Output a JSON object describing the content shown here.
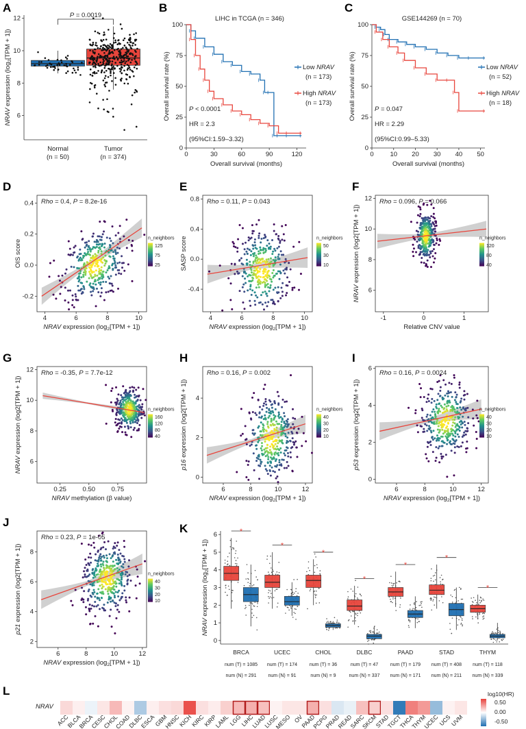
{
  "colors": {
    "red": "#e8453c",
    "blue": "#1f6fb2",
    "yellow": "#f5e51f",
    "purple": "#46185f",
    "band": "#c8c8c8",
    "fit": "#e8453c"
  },
  "panel_labels": [
    "A",
    "B",
    "C",
    "D",
    "E",
    "F",
    "G",
    "H",
    "I",
    "J",
    "K",
    "L"
  ],
  "chart_data": [
    {
      "id": "A",
      "type": "box",
      "title": "",
      "xlabel": "",
      "ylabel": "NRAV expression (log2[TPM + 1])",
      "ylabel_parts": {
        "gene": "NRAV",
        "rest": " expression (log",
        "sub": "2",
        "end": "[TPM + 1])"
      },
      "annotation": "P = 0.0019",
      "categories": [
        {
          "label": "Normal",
          "n": "(n = 50)",
          "color": "#1f6fb2",
          "q1": 9.05,
          "median": 9.2,
          "q3": 9.4,
          "wlo": 8.6,
          "whi": 10.0
        },
        {
          "label": "Tumor",
          "n": "(n = 374)",
          "color": "#e8453c",
          "q1": 9.1,
          "median": 9.55,
          "q3": 10.1,
          "wlo": 7.6,
          "whi": 11.5
        }
      ],
      "ylim": [
        4.5,
        12.2
      ],
      "yticks": [
        "6",
        "8",
        "10",
        "12"
      ],
      "ytick_vals": [
        6,
        8,
        10,
        12
      ]
    },
    {
      "id": "B",
      "type": "line",
      "title": "LIHC in TCGA (n = 346)",
      "xlabel": "Overall survival (months)",
      "ylabel": "Overall survival rate (%)",
      "xlim": [
        0,
        130
      ],
      "ylim": [
        0,
        100
      ],
      "xticks": [
        "0",
        "30",
        "60",
        "90",
        "120"
      ],
      "xtick_vals": [
        0,
        30,
        60,
        90,
        120
      ],
      "yticks": [
        "0",
        "25",
        "50",
        "75",
        "100"
      ],
      "ytick_vals": [
        0,
        25,
        50,
        75,
        100
      ],
      "series": [
        {
          "name": "Low NRAV",
          "label_main": "Low ",
          "label_gene": "NRAV",
          "n": "(n = 173)",
          "color": "#1f6fb2",
          "x": [
            0,
            5,
            10,
            20,
            30,
            40,
            50,
            60,
            70,
            80,
            85,
            90,
            95,
            100,
            110,
            125
          ],
          "y": [
            100,
            95,
            89,
            82,
            76,
            70,
            67,
            62,
            60,
            55,
            45,
            45,
            10,
            10,
            10,
            10
          ]
        },
        {
          "name": "High NRAV",
          "label_main": "High ",
          "label_gene": "NRAV",
          "n": "(n = 173)",
          "color": "#e8453c",
          "x": [
            0,
            5,
            10,
            15,
            20,
            25,
            30,
            40,
            50,
            60,
            70,
            80,
            90,
            100,
            110,
            125
          ],
          "y": [
            100,
            88,
            75,
            64,
            55,
            46,
            40,
            35,
            30,
            27,
            23,
            20,
            18,
            12,
            12,
            12
          ]
        }
      ],
      "stats": [
        "P < 0.0001",
        "HR = 2.3",
        "(95%CI:1.59–3.32)"
      ]
    },
    {
      "id": "C",
      "type": "line",
      "title": "GSE144269 (n = 70)",
      "xlabel": "Overall survival (months)",
      "ylabel": "Overall survival rate (%)",
      "xlim": [
        0,
        52
      ],
      "ylim": [
        0,
        100
      ],
      "xticks": [
        "0",
        "10",
        "20",
        "30",
        "40",
        "50"
      ],
      "xtick_vals": [
        0,
        10,
        20,
        30,
        40,
        50
      ],
      "yticks": [
        "0",
        "25",
        "50",
        "75",
        "100"
      ],
      "ytick_vals": [
        0,
        25,
        50,
        75,
        100
      ],
      "series": [
        {
          "name": "Low NRAV",
          "label_main": "Low ",
          "label_gene": "NRAV",
          "n": "(n = 52)",
          "color": "#1f6fb2",
          "x": [
            0,
            2,
            4,
            6,
            8,
            12,
            16,
            20,
            25,
            30,
            35,
            40,
            45,
            52
          ],
          "y": [
            100,
            98,
            96,
            92,
            88,
            86,
            84,
            82,
            80,
            77,
            75,
            73,
            73,
            73
          ]
        },
        {
          "name": "High NRAV",
          "label_main": "High ",
          "label_gene": "NRAV",
          "n": "(n = 18)",
          "color": "#e8453c",
          "x": [
            0,
            2,
            5,
            8,
            12,
            15,
            20,
            25,
            30,
            35,
            38,
            40,
            52
          ],
          "y": [
            100,
            94,
            88,
            82,
            77,
            71,
            65,
            60,
            55,
            55,
            45,
            30,
            30
          ]
        }
      ],
      "stats": [
        "P = 0.047",
        "HR = 2.29",
        "(95%CI:0.99–5.33)"
      ]
    },
    {
      "id": "D",
      "type": "scatter",
      "stat": "Rho = 0.4, P = 8.2e-16",
      "stat_rho": "Rho",
      "stat_rest": " = 0.4, ",
      "stat_p": "P",
      "stat_val": " = 8.2e-16",
      "xlabel": "NRAV expression (log2[TPM + 1])",
      "xlab_gene": "NRAV",
      "xlab_rest": " expression (log",
      "xlab_end": "[TPM + 1])",
      "ylabel": "OIS score",
      "ylab_gene": "",
      "ylab_rest": "OIS score",
      "xlim": [
        3.5,
        10.5
      ],
      "ylim": [
        -0.3,
        0.45
      ],
      "xticks": [
        "4",
        "6",
        "8",
        "10"
      ],
      "xtick_vals": [
        4,
        6,
        8,
        10
      ],
      "yticks": [
        "-0.2",
        "0.0",
        "0.2",
        "0.4"
      ],
      "ytick_vals": [
        -0.2,
        0,
        0.2,
        0.4
      ],
      "fit": [
        [
          3.8,
          -0.2
        ],
        [
          10.2,
          0.24
        ]
      ],
      "band": 0.04,
      "cx": 7.2,
      "cy": 0.0,
      "sx": 1.0,
      "sy": 0.11,
      "n": 380,
      "legend_title": "n_neighbors",
      "legend_ticks": [
        "125",
        "75",
        "25"
      ]
    },
    {
      "id": "E",
      "type": "scatter",
      "stat": "Rho = 0.11, P = 0.043",
      "stat_rho": "Rho",
      "stat_rest": " = 0.11, ",
      "stat_p": "P",
      "stat_val": " = 0.043",
      "xlabel": "NRAV expression (log2[TPM + 1])",
      "xlab_gene": "NRAV",
      "xlab_rest": " expression (log",
      "xlab_end": "[TPM + 1])",
      "ylabel": "SASP score",
      "ylab_gene": "",
      "ylab_rest": "SASP score",
      "xlim": [
        3.5,
        10.5
      ],
      "ylim": [
        -0.7,
        0.85
      ],
      "xticks": [
        "4",
        "6",
        "8",
        "10"
      ],
      "xtick_vals": [
        4,
        6,
        8,
        10
      ],
      "yticks": [
        "-0.4",
        "0.0",
        "0.4",
        "0.8"
      ],
      "ytick_vals": [
        -0.4,
        0,
        0.4,
        0.8
      ],
      "fit": [
        [
          3.8,
          -0.2
        ],
        [
          10.2,
          0.02
        ]
      ],
      "band": 0.09,
      "cx": 7.3,
      "cy": -0.15,
      "sx": 0.9,
      "sy": 0.28,
      "n": 380,
      "legend_title": "n_neighbors",
      "legend_ticks": [
        "50",
        "30",
        "10"
      ]
    },
    {
      "id": "F",
      "type": "scatter",
      "stat": "Rho = 0.096, P = 0.066",
      "stat_rho": "Rho",
      "stat_rest": " = 0.096, ",
      "stat_p": "P",
      "stat_val": " = 0.066",
      "xlabel": "Relative CNV value",
      "xlab_gene": "",
      "xlab_rest": "Relative CNV value",
      "xlab_end": "",
      "ylabel": "NRAV expression (log2[TPM + 1])",
      "ylab_gene": "NRAV",
      "ylab_rest": " expression (log2[TPM + 1])",
      "xlim": [
        -1.2,
        1.6
      ],
      "ylim": [
        4.6,
        12.2
      ],
      "xticks": [
        "-1",
        "0",
        "1"
      ],
      "xtick_vals": [
        -1,
        0,
        1
      ],
      "yticks": [
        "6",
        "8",
        "10",
        "12"
      ],
      "ytick_vals": [
        6,
        8,
        10,
        12
      ],
      "fit": [
        [
          -1.15,
          9.2
        ],
        [
          1.55,
          10.0
        ]
      ],
      "band": 0.35,
      "cx": 0.05,
      "cy": 9.5,
      "sx": 0.12,
      "sy": 0.8,
      "n": 330,
      "legend_title": "n_neighbors",
      "legend_ticks": [
        "120",
        "80",
        "40"
      ]
    },
    {
      "id": "G",
      "type": "scatter",
      "stat": "Rho = -0.35, P = 7.7e-12",
      "stat_rho": "Rho",
      "stat_rest": " = -0.35, ",
      "stat_p": "P",
      "stat_val": " = 7.7e-12",
      "xlabel": "NRAV methylation (β value)",
      "xlab_gene": "NRAV",
      "xlab_rest": " methylation (β value)",
      "xlab_end": "",
      "ylabel": "NRAV expression (log2[TPM + 1])",
      "ylab_gene": "NRAV",
      "ylab_rest": " expression (log2[TPM + 1])",
      "xlim": [
        0.05,
        1.0
      ],
      "ylim": [
        4.6,
        12.2
      ],
      "xticks": [
        "0.25",
        "0.50",
        "0.75"
      ],
      "xtick_vals": [
        0.25,
        0.5,
        0.75
      ],
      "yticks": [
        "6",
        "8",
        "10",
        "12"
      ],
      "ytick_vals": [
        6,
        8,
        10,
        12
      ],
      "fit": [
        [
          0.1,
          10.3
        ],
        [
          0.98,
          9.2
        ]
      ],
      "band": 0.15,
      "cx": 0.85,
      "cy": 9.4,
      "sx": 0.06,
      "sy": 0.7,
      "n": 360,
      "legend_title": "n_neighbors",
      "legend_ticks": [
        "160",
        "120",
        "80",
        "40"
      ]
    },
    {
      "id": "H",
      "type": "scatter",
      "stat": "Rho = 0.16, P = 0.002",
      "stat_rho": "Rho",
      "stat_rest": " = 0.16, ",
      "stat_p": "P",
      "stat_val": " = 0.002",
      "xlabel": "NRAV expression (log2[TPM + 1])",
      "xlab_gene": "NRAV",
      "xlab_rest": " expression (log",
      "xlab_end": "[TPM + 1])",
      "ylabel": "p16 expression (log2[TPM + 1])",
      "ylab_gene": "p16",
      "ylab_rest": " expression (log2[TPM + 1])",
      "xlim": [
        4.5,
        12.5
      ],
      "ylim": [
        -0.3,
        5.6
      ],
      "xticks": [
        "6",
        "8",
        "10",
        "12"
      ],
      "xtick_vals": [
        6,
        8,
        10,
        12
      ],
      "yticks": [
        "0",
        "2",
        "4"
      ],
      "ytick_vals": [
        0,
        2,
        4
      ],
      "fit": [
        [
          4.8,
          1.1
        ],
        [
          12,
          2.7
        ]
      ],
      "band": 0.3,
      "cx": 9.5,
      "cy": 2.0,
      "sx": 0.9,
      "sy": 1.1,
      "n": 380,
      "legend_title": "n_neighbors",
      "legend_ticks": [
        "40",
        "30",
        "20",
        "10"
      ]
    },
    {
      "id": "I",
      "type": "scatter",
      "stat": "Rho = 0.16, P = 0.0024",
      "stat_rho": "Rho",
      "stat_rest": " = 0.16, ",
      "stat_p": "P",
      "stat_val": " = 0.0024",
      "xlabel": "NRAV expression (log2[TPM + 1])",
      "xlab_gene": "NRAV",
      "xlab_rest": " expression (log",
      "xlab_end": "[TPM + 1])",
      "ylabel": "p53 expression (log2[TPM + 1])",
      "ylab_gene": "p53",
      "ylab_rest": " expression (log2[TPM + 1])",
      "xlim": [
        4.5,
        12.5
      ],
      "ylim": [
        -0.2,
        6.1
      ],
      "xticks": [
        "6",
        "8",
        "10",
        "12"
      ],
      "xtick_vals": [
        6,
        8,
        10,
        12
      ],
      "yticks": [
        "0",
        "2",
        "4",
        "6"
      ],
      "ytick_vals": [
        0,
        2,
        4,
        6
      ],
      "fit": [
        [
          4.8,
          2.6
        ],
        [
          12,
          3.8
        ]
      ],
      "band": 0.35,
      "cx": 9.5,
      "cy": 3.2,
      "sx": 0.9,
      "sy": 1.0,
      "n": 380,
      "legend_title": "n_neighbors",
      "legend_ticks": [
        "40",
        "30",
        "20",
        "10"
      ]
    },
    {
      "id": "J",
      "type": "scatter",
      "stat": "Rho = 0.23, P = 1e-05",
      "stat_rho": "Rho",
      "stat_rest": " = 0.23, ",
      "stat_p": "P",
      "stat_val": " = 1e-05",
      "xlabel": "NRAV expression (log2[TPM + 1])",
      "xlab_gene": "NRAV",
      "xlab_rest": " expression (log",
      "xlab_end": "[TPM + 1])",
      "ylabel": "p21 expression (log2[TPM + 1])",
      "ylab_gene": "p21",
      "ylab_rest": " expression (log2[TPM + 1])",
      "xlim": [
        4.5,
        12.3
      ],
      "ylim": [
        1.6,
        9.4
      ],
      "xticks": [
        "6",
        "8",
        "10",
        "12"
      ],
      "xtick_vals": [
        6,
        8,
        10,
        12
      ],
      "yticks": [
        "2",
        "4",
        "6",
        "8"
      ],
      "ytick_vals": [
        2,
        4,
        6,
        8
      ],
      "fit": [
        [
          4.8,
          4.8
        ],
        [
          12,
          7.2
        ]
      ],
      "band": 0.45,
      "cx": 9.5,
      "cy": 6.2,
      "sx": 0.9,
      "sy": 1.2,
      "n": 400,
      "legend_title": "n_neighbors",
      "legend_ticks": [
        "40",
        "30",
        "20",
        "10"
      ]
    },
    {
      "id": "K",
      "type": "box",
      "ylabel": "NRAV expression (log2[TPM + 1])",
      "ylim": [
        -0.2,
        6.2
      ],
      "yticks": [
        "0",
        "1",
        "2",
        "3",
        "4",
        "5",
        "6"
      ],
      "ytick_vals": [
        0,
        1,
        2,
        3,
        4,
        5,
        6
      ],
      "groups": [
        {
          "name": "BRCA",
          "T": {
            "q1": 3.4,
            "med": 3.8,
            "q3": 4.2,
            "lo": 1.8,
            "hi": 5.8
          },
          "N": {
            "q1": 2.2,
            "med": 2.6,
            "q3": 3.0,
            "lo": 0.8,
            "hi": 4.3
          },
          "numT": "num (T) = 1085",
          "numN": "num (N) = 291"
        },
        {
          "name": "UCEC",
          "T": {
            "q1": 3.0,
            "med": 3.3,
            "q3": 3.7,
            "lo": 1.8,
            "hi": 5.0
          },
          "N": {
            "q1": 2.0,
            "med": 2.2,
            "q3": 2.5,
            "lo": 1.4,
            "hi": 3.3
          },
          "numT": "num (T) = 174",
          "numN": "num (N) = 91"
        },
        {
          "name": "CHOL",
          "T": {
            "q1": 3.0,
            "med": 3.4,
            "q3": 3.7,
            "lo": 2.0,
            "hi": 4.6
          },
          "N": {
            "q1": 0.75,
            "med": 0.85,
            "q3": 0.95,
            "lo": 0.6,
            "hi": 1.1
          },
          "numT": "num (T) = 36",
          "numN": "num (N) = 9"
        },
        {
          "name": "DLBC",
          "T": {
            "q1": 1.7,
            "med": 1.95,
            "q3": 2.3,
            "lo": 0.9,
            "hi": 3.1
          },
          "N": {
            "q1": 0.1,
            "med": 0.25,
            "q3": 0.35,
            "lo": 0.0,
            "hi": 0.8
          },
          "numT": "num (T) = 47",
          "numN": "num (N) = 337"
        },
        {
          "name": "PAAD",
          "T": {
            "q1": 2.5,
            "med": 2.75,
            "q3": 3.0,
            "lo": 1.9,
            "hi": 3.9
          },
          "N": {
            "q1": 1.3,
            "med": 1.5,
            "q3": 1.7,
            "lo": 0.7,
            "hi": 2.5
          },
          "numT": "num (T) = 179",
          "numN": "num (N) = 171"
        },
        {
          "name": "STAD",
          "T": {
            "q1": 2.6,
            "med": 2.85,
            "q3": 3.15,
            "lo": 1.8,
            "hi": 4.3
          },
          "N": {
            "q1": 1.4,
            "med": 1.75,
            "q3": 2.1,
            "lo": 0.6,
            "hi": 3.0
          },
          "numT": "num (T) = 408",
          "numN": "num (N) = 211"
        },
        {
          "name": "THYM",
          "T": {
            "q1": 1.6,
            "med": 1.8,
            "q3": 2.0,
            "lo": 1.2,
            "hi": 2.6
          },
          "N": {
            "q1": 0.15,
            "med": 0.25,
            "q3": 0.35,
            "lo": 0.0,
            "hi": 1.0
          },
          "numT": "num (T) = 118",
          "numN": "num (N) = 339"
        }
      ]
    },
    {
      "id": "L",
      "type": "heatmap",
      "row_label": "NRAV",
      "legend_title": "log10(HR)",
      "legend_ticks": [
        "0.50",
        "0.00",
        "-0.50"
      ],
      "range": [
        -0.6,
        0.6
      ],
      "cancers": [
        "ACC",
        "BLCA",
        "BRCA",
        "CESC",
        "CHOL",
        "COAD",
        "DLBC",
        "ESCA",
        "GBM",
        "HNSC",
        "KICH",
        "KIRC",
        "KIRP",
        "LAML",
        "LGG",
        "LIHC",
        "LUAD",
        "LUSC",
        "MESO",
        "OV",
        "PAAD",
        "PCPG",
        "PRAD",
        "READ",
        "SARC",
        "SKCM",
        "STAD",
        "TGCT",
        "THCA",
        "THYM",
        "UCEC",
        "UCS",
        "UVM"
      ],
      "values": [
        0.12,
        0.05,
        -0.05,
        0.08,
        0.22,
        0.04,
        -0.22,
        0.05,
        0.1,
        0.12,
        0.55,
        0.1,
        0.06,
        0.15,
        0.22,
        0.25,
        0.2,
        0.04,
        0.08,
        0.08,
        0.25,
        0.1,
        -0.1,
        -0.06,
        0.2,
        0.15,
        0.1,
        -0.55,
        0.4,
        0.32,
        -0.28,
        0.04,
        0.08
      ],
      "highlighted": [
        "LGG",
        "LIHC",
        "LUAD",
        "PAAD",
        "SKCM"
      ]
    }
  ]
}
